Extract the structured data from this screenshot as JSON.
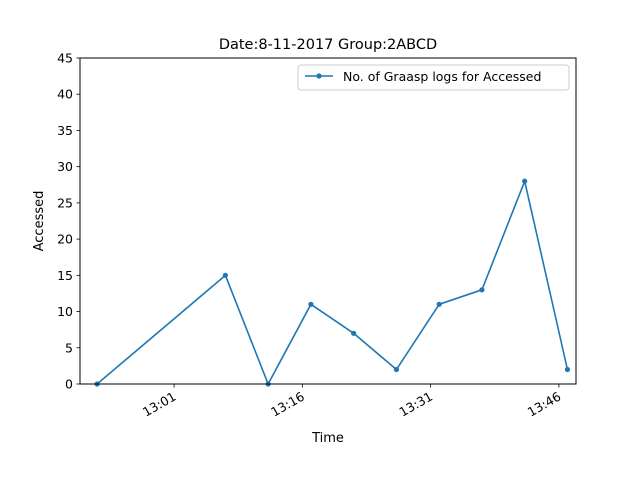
{
  "chart_data": {
    "type": "line",
    "title": "Date:8-11-2017  Group:2ABCD",
    "xlabel": "Time",
    "ylabel": "Accessed",
    "ylim": [
      0,
      45
    ],
    "yticks": [
      0,
      5,
      10,
      15,
      20,
      25,
      30,
      35,
      40,
      45
    ],
    "xlim": [
      "12:50",
      "13:48"
    ],
    "xticks": [
      "13:01",
      "13:16",
      "13:31",
      "13:46"
    ],
    "grid": false,
    "legend": "top-right",
    "series": [
      {
        "name": "No. of Graasp logs for Accessed",
        "color": "#1f77b4",
        "marker": "circle",
        "x": [
          "12:52",
          "13:07",
          "13:12",
          "13:17",
          "13:22",
          "13:27",
          "13:32",
          "13:37",
          "13:42",
          "13:47"
        ],
        "y": [
          0,
          15,
          0,
          11,
          7,
          2,
          11,
          13,
          28,
          2
        ]
      }
    ]
  }
}
